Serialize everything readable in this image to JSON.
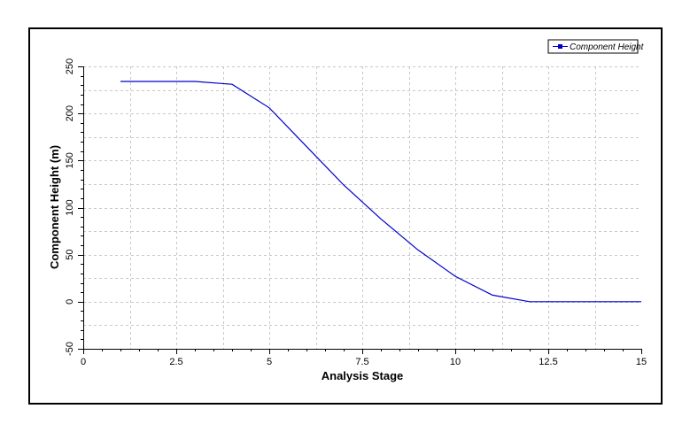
{
  "chart_data": {
    "type": "line",
    "title": "",
    "xlabel": "Analysis Stage",
    "ylabel": "Component Height (m)",
    "xlim": [
      0,
      15
    ],
    "ylim": [
      -50,
      250
    ],
    "xticks": [
      "0",
      "2.5",
      "5",
      "7.5",
      "10",
      "12.5",
      "15"
    ],
    "yticks": [
      "-50",
      "0",
      "50",
      "100",
      "150",
      "200",
      "250"
    ],
    "xtick_values": [
      0,
      2.5,
      5,
      7.5,
      10,
      12.5,
      15
    ],
    "ytick_values": [
      -50,
      0,
      50,
      100,
      150,
      200,
      250
    ],
    "grid": true,
    "legend_position": "top-right",
    "series": [
      {
        "name": "Component Height",
        "color": "#0000cc",
        "x": [
          1,
          2,
          3,
          4,
          5,
          6,
          7,
          8,
          9,
          10,
          11,
          12,
          13,
          14,
          15
        ],
        "y": [
          234,
          234,
          234,
          231,
          206,
          165,
          124,
          88,
          55,
          27,
          7,
          0,
          0,
          0,
          0
        ]
      }
    ]
  }
}
